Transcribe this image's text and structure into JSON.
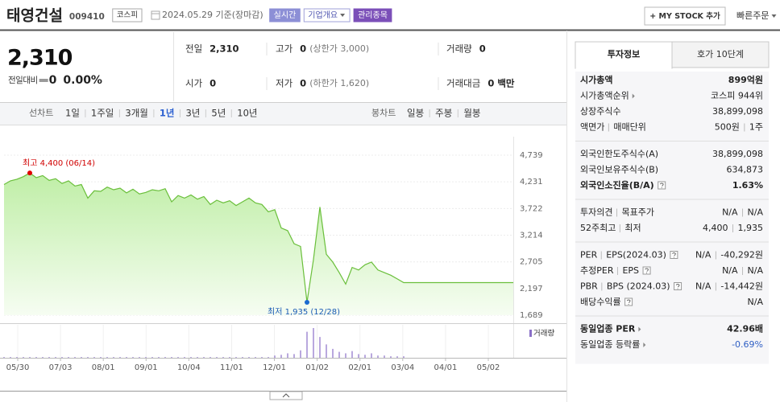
{
  "header": {
    "name": "태영건설",
    "code": "009410",
    "market": "코스피",
    "date": "2024.05.29 기준(장마감)",
    "badges": [
      {
        "text": "실시간",
        "fill": "#8c8fd6",
        "color": "#ffffff"
      },
      {
        "text": "기업개요",
        "fill": "#ffffff",
        "color": "#4f55b0",
        "dropdown": true
      },
      {
        "text": "관리종목",
        "fill": "#7b4fb8",
        "color": "#ffffff"
      }
    ],
    "mystock": "+ MY STOCK 추가",
    "quick_order": "빠른주문"
  },
  "price": {
    "current": "2,310",
    "change_label": "전일대비",
    "change": "0",
    "change_rate": "0.00%"
  },
  "summary": [
    {
      "label": "전일",
      "value": "2,310"
    },
    {
      "label": "고가",
      "value": "0",
      "note": "(상한가 3,000)"
    },
    {
      "label": "거래량",
      "value": "0"
    },
    {
      "label": "시가",
      "value": "0"
    },
    {
      "label": "저가",
      "value": "0",
      "note": "(하한가 1,620)"
    },
    {
      "label": "거래대금",
      "value": "0 백만"
    }
  ],
  "tabs": {
    "line_label": "선차트",
    "periods": [
      "1일",
      "1주일",
      "3개월",
      "1년",
      "3년",
      "5년",
      "10년"
    ],
    "selected": "1년",
    "candle_label": "봉차트",
    "candles": [
      "일봉",
      "주봉",
      "월봉"
    ]
  },
  "chart": {
    "type": "line",
    "color": "#6abf3b",
    "values": [
      4180,
      4250,
      4280,
      4330,
      4400,
      4310,
      4350,
      4260,
      4290,
      4200,
      4250,
      4150,
      4180,
      3920,
      4060,
      4050,
      4130,
      4080,
      4110,
      4020,
      4090,
      4000,
      4030,
      4080,
      4060,
      4100,
      3850,
      3970,
      3920,
      3980,
      3900,
      3950,
      3800,
      3880,
      3830,
      3870,
      3780,
      3850,
      3920,
      3830,
      3800,
      3660,
      3700,
      3350,
      3300,
      3050,
      3000,
      1935,
      2750,
      3750,
      2850,
      2700,
      2500,
      2280,
      2600,
      2550,
      2650,
      2700,
      2550,
      2500,
      2450,
      2380,
      2310,
      2310,
      2310,
      2310,
      2310,
      2310,
      2310,
      2310,
      2310,
      2310,
      2310,
      2310,
      2310,
      2310,
      2310,
      2310,
      2310,
      2310
    ],
    "ylim": [
      1689,
      4739
    ],
    "yticks": [
      {
        "value": 4739,
        "label": "4,739"
      },
      {
        "value": 4231,
        "label": "4,231"
      },
      {
        "value": 3722,
        "label": "3,722"
      },
      {
        "value": 3214,
        "label": "3,214"
      },
      {
        "value": 2705,
        "label": "2,705"
      },
      {
        "value": 2197,
        "label": "2,197"
      },
      {
        "value": 1689,
        "label": "1,689"
      }
    ],
    "grid": true,
    "max_label": "최고 4,400 (06/14)",
    "min_label": "최저 1,935 (12/28)",
    "xlabels": [
      "05/30",
      "07/03",
      "08/01",
      "09/01",
      "10/04",
      "11/01",
      "12/01",
      "01/02",
      "02/01",
      "03/04",
      "04/01",
      "05/02"
    ],
    "volume": {
      "label": "거래량",
      "color": "#8a6fc7",
      "values": [
        1,
        1,
        1,
        1,
        1,
        1,
        1,
        1,
        1,
        1,
        1,
        1,
        1,
        1,
        1,
        1,
        1,
        1,
        1,
        1,
        1,
        1,
        1,
        1,
        1,
        1,
        1,
        1,
        1,
        1,
        1,
        1,
        1,
        1,
        1,
        1,
        1,
        1,
        1,
        1,
        1,
        1,
        3,
        4,
        6,
        5,
        10,
        35,
        40,
        28,
        18,
        12,
        8,
        6,
        9,
        5,
        4,
        6,
        3,
        3,
        2,
        2,
        2,
        0,
        0,
        0,
        0,
        0,
        0,
        0,
        0,
        0,
        0,
        0,
        0,
        0,
        0,
        0,
        0,
        0
      ]
    }
  },
  "info": {
    "tabs": [
      "투자정보",
      "호가 10단계"
    ],
    "groups": [
      [
        {
          "label": [
            "시가총액"
          ],
          "bold": true,
          "values": [
            "899억원"
          ]
        },
        {
          "label": [
            "시가총액순위"
          ],
          "arrow": true,
          "values": [
            "코스피 944위"
          ]
        },
        {
          "label": [
            "상장주식수"
          ],
          "values": [
            "38,899,098"
          ]
        },
        {
          "label": [
            "액면가",
            "매매단위"
          ],
          "values": [
            "500원",
            "1주"
          ]
        }
      ],
      [
        {
          "label": [
            "외국인한도주식수(A)"
          ],
          "values": [
            "38,899,098"
          ]
        },
        {
          "label": [
            "외국인보유주식수(B)"
          ],
          "values": [
            "634,873"
          ]
        },
        {
          "label": [
            "외국인소진율(B/A)"
          ],
          "help": true,
          "bold": true,
          "values": [
            "1.63%"
          ]
        }
      ],
      [
        {
          "label": [
            "투자의견",
            "목표주가"
          ],
          "values": [
            "N/A",
            "N/A"
          ]
        },
        {
          "label": [
            "52주최고",
            "최저"
          ],
          "values": [
            "4,400",
            "1,935"
          ]
        }
      ],
      [
        {
          "label": [
            "PER",
            "EPS(2024.03)"
          ],
          "help": true,
          "values": [
            "N/A",
            "-40,292원"
          ]
        },
        {
          "label": [
            "추정PER",
            "EPS"
          ],
          "help": true,
          "values": [
            "N/A",
            "N/A"
          ]
        },
        {
          "label": [
            "PBR",
            "BPS (2024.03)"
          ],
          "help": true,
          "values": [
            "N/A",
            "-14,442원"
          ]
        },
        {
          "label": [
            "배당수익률"
          ],
          "help": true,
          "values": [
            "N/A"
          ]
        }
      ],
      [
        {
          "label": [
            "동일업종 PER"
          ],
          "arrow": true,
          "bold": true,
          "values": [
            "42.96배"
          ]
        },
        {
          "label": [
            "동일업종 등락률"
          ],
          "arrow": true,
          "values": [
            "-0.69%"
          ],
          "color": "#2f5fc4"
        }
      ]
    ]
  }
}
